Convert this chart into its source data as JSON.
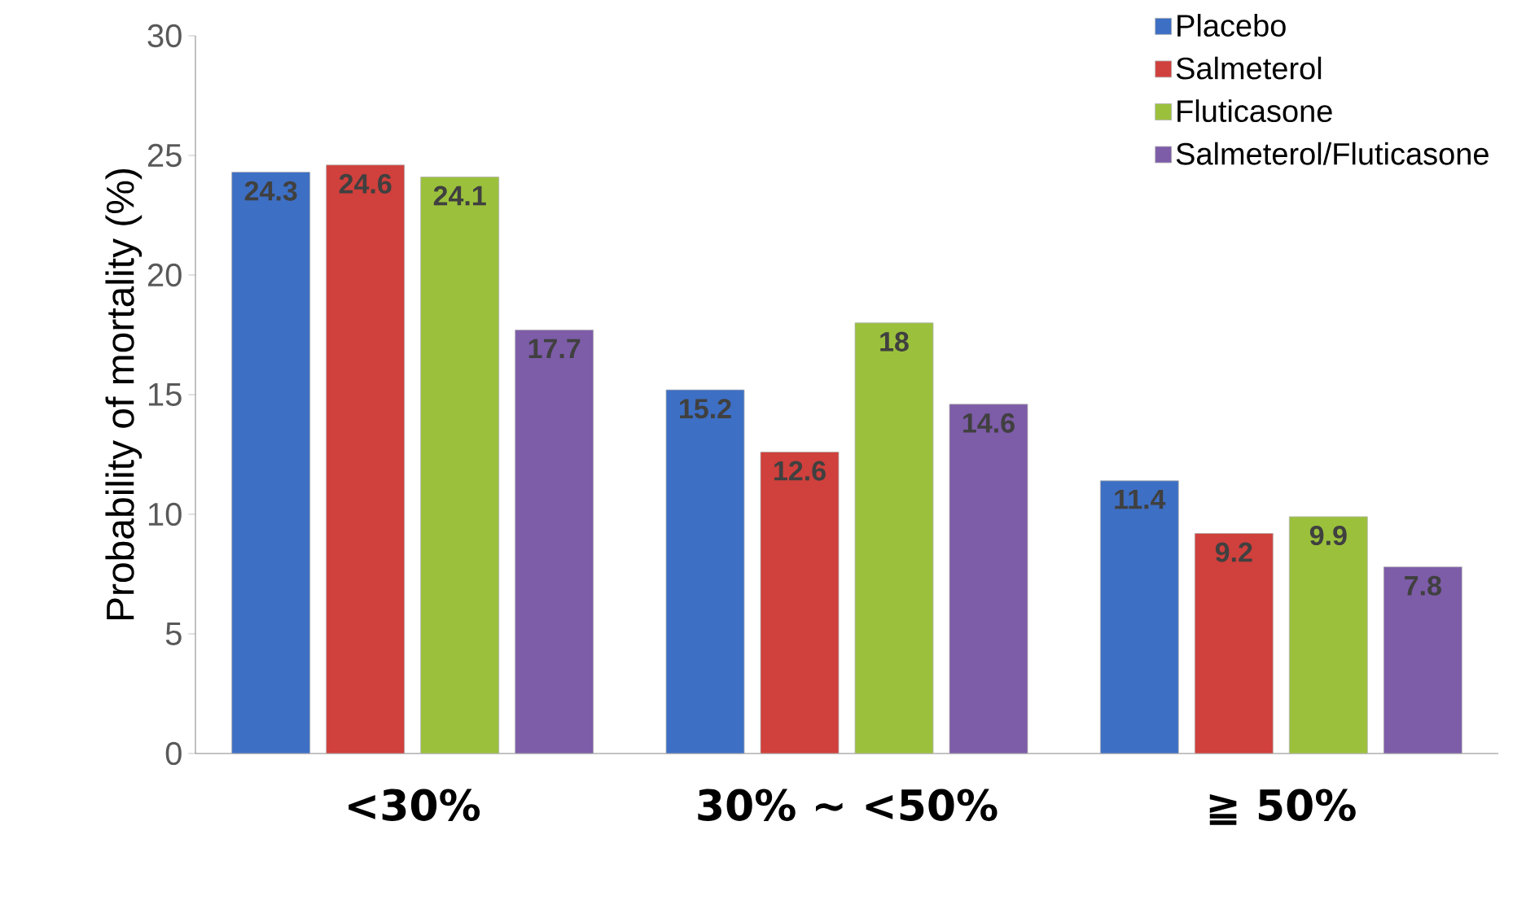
{
  "chart_data": {
    "type": "bar",
    "ylabel": "Probability of mortality (%)",
    "categories": [
      "<30%",
      "30% ~ <50%",
      "≧ 50%"
    ],
    "series": [
      {
        "name": "Placebo",
        "color": "#3d6fc4",
        "values": [
          24.3,
          15.2,
          11.4
        ]
      },
      {
        "name": "Salmeterol",
        "color": "#d0403c",
        "values": [
          24.6,
          12.6,
          9.2
        ]
      },
      {
        "name": "Fluticasone",
        "color": "#9bc13c",
        "values": [
          24.1,
          18,
          9.9
        ]
      },
      {
        "name": "Salmeterol/Fluticasone",
        "color": "#7d5ca8",
        "values": [
          17.7,
          14.6,
          7.8
        ]
      }
    ],
    "ylim": [
      0,
      30
    ],
    "yticks": [
      0,
      5,
      10,
      15,
      20,
      25,
      30
    ],
    "data_labels": true,
    "legend": "top right"
  }
}
